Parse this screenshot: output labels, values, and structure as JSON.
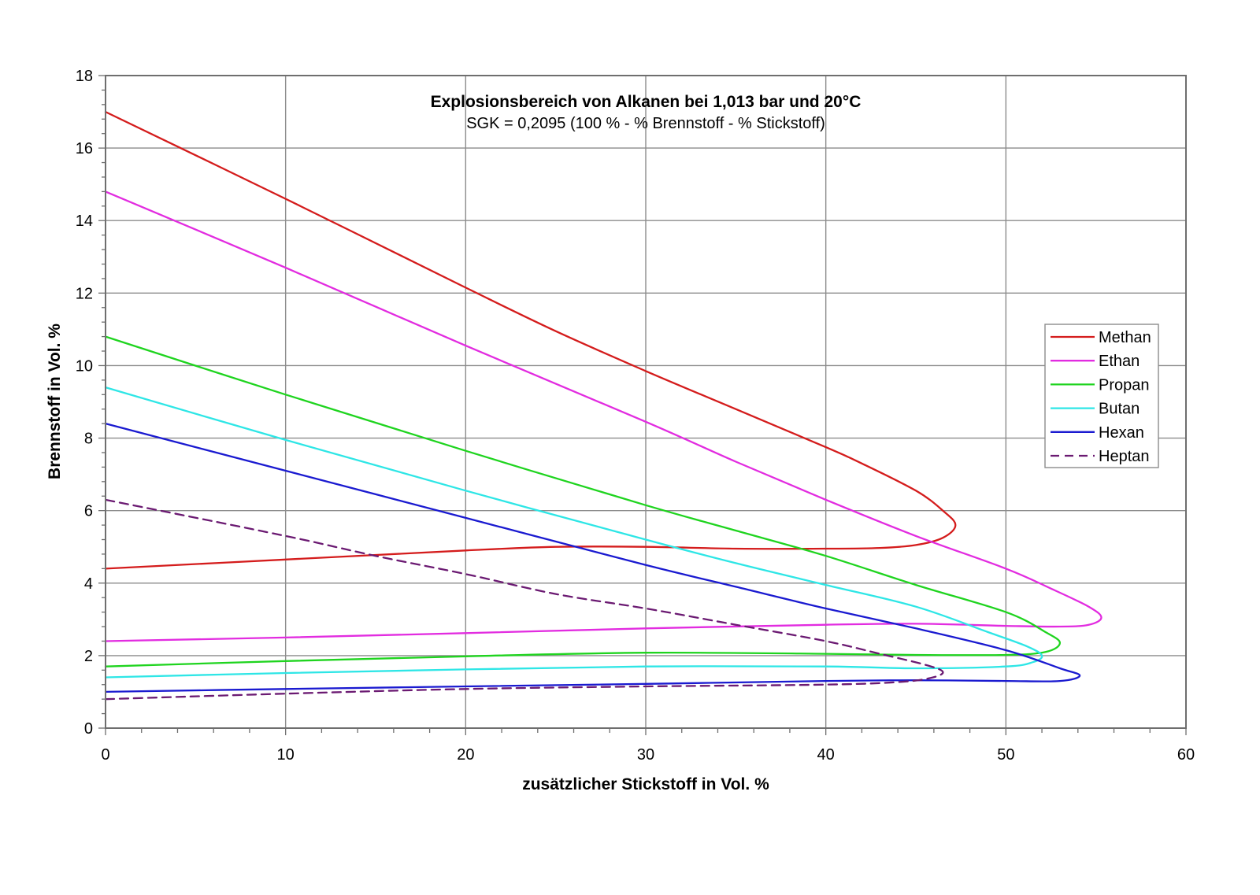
{
  "chart_data": {
    "type": "line",
    "title": "Explosionsbereich von Alkanen bei 1,013 bar und 20°C",
    "subtitle": "SGK = 0,2095 (100 % - % Brennstoff - % Stickstoff)",
    "xlabel": "zusätzlicher Stickstoff in Vol. %",
    "ylabel": "Brennstoff in Vol. %",
    "xlim": [
      0,
      60
    ],
    "ylim": [
      0,
      18
    ],
    "x_ticks": [
      0,
      10,
      20,
      30,
      40,
      50,
      60
    ],
    "y_ticks": [
      0,
      2,
      4,
      6,
      8,
      10,
      12,
      14,
      16,
      18
    ],
    "x_tick_labels": [
      "0",
      "10",
      "20",
      "30",
      "40",
      "50",
      "60"
    ],
    "y_tick_labels": [
      "0",
      "2",
      "4",
      "6",
      "8",
      "10",
      "12",
      "14",
      "16",
      "18"
    ],
    "grid": true,
    "legend_position": "right",
    "series": [
      {
        "name": "Methan",
        "color": "#d41c1c",
        "dash": "solid",
        "points": [
          [
            0,
            4.4
          ],
          [
            10,
            4.65
          ],
          [
            20,
            4.9
          ],
          [
            25,
            5.0
          ],
          [
            30,
            5.0
          ],
          [
            35,
            4.95
          ],
          [
            40,
            4.95
          ],
          [
            43,
            4.97
          ],
          [
            45,
            5.05
          ],
          [
            46.5,
            5.25
          ],
          [
            47.2,
            5.6
          ],
          [
            46.5,
            6.0
          ],
          [
            45,
            6.55
          ],
          [
            42,
            7.3
          ],
          [
            40,
            7.75
          ],
          [
            35,
            8.8
          ],
          [
            30,
            9.85
          ],
          [
            25,
            10.95
          ],
          [
            20,
            12.15
          ],
          [
            10,
            14.6
          ],
          [
            0,
            17.0
          ]
        ]
      },
      {
        "name": "Ethan",
        "color": "#e22ce0",
        "dash": "solid",
        "points": [
          [
            0,
            2.4
          ],
          [
            10,
            2.5
          ],
          [
            20,
            2.62
          ],
          [
            30,
            2.75
          ],
          [
            40,
            2.85
          ],
          [
            45,
            2.88
          ],
          [
            50,
            2.82
          ],
          [
            53,
            2.8
          ],
          [
            54.6,
            2.85
          ],
          [
            55.3,
            3.05
          ],
          [
            54.6,
            3.35
          ],
          [
            52.5,
            3.85
          ],
          [
            50,
            4.4
          ],
          [
            45,
            5.3
          ],
          [
            40,
            6.3
          ],
          [
            35,
            7.35
          ],
          [
            30,
            8.45
          ],
          [
            20,
            10.55
          ],
          [
            10,
            12.7
          ],
          [
            0,
            14.8
          ]
        ]
      },
      {
        "name": "Propan",
        "color": "#1fd41f",
        "dash": "solid",
        "points": [
          [
            0,
            1.7
          ],
          [
            10,
            1.85
          ],
          [
            20,
            1.98
          ],
          [
            30,
            2.08
          ],
          [
            40,
            2.05
          ],
          [
            45,
            2.02
          ],
          [
            50,
            2.02
          ],
          [
            52.2,
            2.1
          ],
          [
            53.0,
            2.35
          ],
          [
            52.2,
            2.65
          ],
          [
            50,
            3.2
          ],
          [
            45,
            3.95
          ],
          [
            40,
            4.75
          ],
          [
            35,
            5.45
          ],
          [
            30,
            6.15
          ],
          [
            20,
            7.65
          ],
          [
            10,
            9.2
          ],
          [
            0,
            10.8
          ]
        ]
      },
      {
        "name": "Butan",
        "color": "#2ee6e6",
        "dash": "solid",
        "points": [
          [
            0,
            1.4
          ],
          [
            10,
            1.52
          ],
          [
            20,
            1.62
          ],
          [
            30,
            1.7
          ],
          [
            40,
            1.7
          ],
          [
            45,
            1.65
          ],
          [
            50,
            1.7
          ],
          [
            51.5,
            1.82
          ],
          [
            52.0,
            2.0
          ],
          [
            51.2,
            2.25
          ],
          [
            49,
            2.65
          ],
          [
            45,
            3.35
          ],
          [
            40,
            3.95
          ],
          [
            35,
            4.55
          ],
          [
            30,
            5.2
          ],
          [
            20,
            6.55
          ],
          [
            10,
            7.95
          ],
          [
            0,
            9.4
          ]
        ]
      },
      {
        "name": "Hexan",
        "color": "#1a1ad0",
        "dash": "solid",
        "points": [
          [
            0,
            1.0
          ],
          [
            10,
            1.08
          ],
          [
            20,
            1.15
          ],
          [
            30,
            1.22
          ],
          [
            40,
            1.3
          ],
          [
            45,
            1.32
          ],
          [
            50,
            1.3
          ],
          [
            53,
            1.3
          ],
          [
            54.1,
            1.45
          ],
          [
            53,
            1.65
          ],
          [
            50,
            2.15
          ],
          [
            45,
            2.75
          ],
          [
            40,
            3.3
          ],
          [
            35,
            3.9
          ],
          [
            30,
            4.5
          ],
          [
            20,
            5.8
          ],
          [
            10,
            7.1
          ],
          [
            0,
            8.4
          ]
        ]
      },
      {
        "name": "Heptan",
        "color": "#6b1a72",
        "dash": "dashed",
        "points": [
          [
            0,
            0.8
          ],
          [
            10,
            0.95
          ],
          [
            20,
            1.08
          ],
          [
            30,
            1.15
          ],
          [
            40,
            1.2
          ],
          [
            44,
            1.27
          ],
          [
            45.8,
            1.38
          ],
          [
            46.5,
            1.55
          ],
          [
            45.5,
            1.75
          ],
          [
            43,
            2.05
          ],
          [
            40,
            2.4
          ],
          [
            35,
            2.85
          ],
          [
            30,
            3.3
          ],
          [
            25,
            3.7
          ],
          [
            20,
            4.25
          ],
          [
            15,
            4.75
          ],
          [
            10,
            5.3
          ],
          [
            0,
            6.3
          ]
        ]
      }
    ]
  },
  "legend": {
    "items": [
      {
        "label": "Methan",
        "color": "#d41c1c",
        "dash": "solid"
      },
      {
        "label": "Ethan",
        "color": "#e22ce0",
        "dash": "solid"
      },
      {
        "label": "Propan",
        "color": "#1fd41f",
        "dash": "solid"
      },
      {
        "label": "Butan",
        "color": "#2ee6e6",
        "dash": "solid"
      },
      {
        "label": "Hexan",
        "color": "#1a1ad0",
        "dash": "solid"
      },
      {
        "label": "Heptan",
        "color": "#6b1a72",
        "dash": "dashed"
      }
    ]
  }
}
